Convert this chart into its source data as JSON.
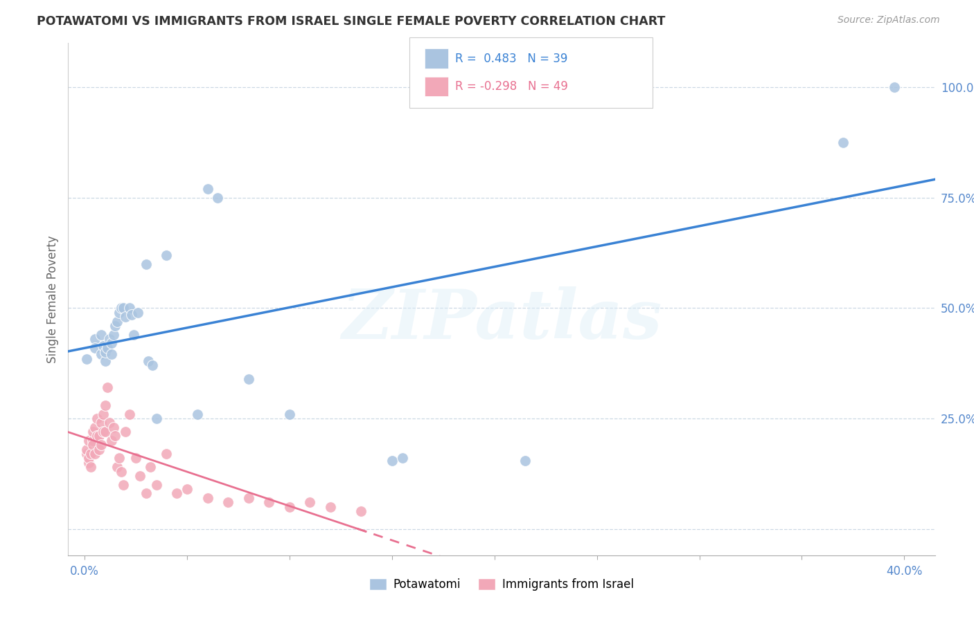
{
  "title": "POTAWATOMI VS IMMIGRANTS FROM ISRAEL SINGLE FEMALE POVERTY CORRELATION CHART",
  "source": "Source: ZipAtlas.com",
  "ylabel": "Single Female Poverty",
  "legend1_r_text": "R =  0.483",
  "legend1_n_text": "N = 39",
  "legend2_r_text": "R = -0.298",
  "legend2_n_text": "N = 49",
  "watermark": "ZIPatlas",
  "blue_dot_color": "#aac4e0",
  "pink_dot_color": "#f2a8b8",
  "blue_line_color": "#3a82d4",
  "pink_line_color": "#e87090",
  "grid_color": "#ccd8e4",
  "bg_color": "#ffffff",
  "tick_color": "#5588cc",
  "title_color": "#333333",
  "ylabel_color": "#666666",
  "source_color": "#999999",
  "potawatomi_x": [
    0.1,
    0.5,
    0.5,
    0.8,
    0.8,
    0.9,
    1.0,
    1.0,
    1.1,
    1.2,
    1.3,
    1.3,
    1.4,
    1.5,
    1.6,
    1.7,
    1.8,
    1.9,
    2.0,
    2.2,
    2.3,
    2.4,
    2.6,
    3.0,
    3.1,
    3.3,
    3.5,
    4.0,
    5.5,
    6.0,
    6.5,
    8.0,
    10.0,
    15.0,
    15.5,
    19.5,
    21.5,
    37.0,
    39.5
  ],
  "potawatomi_y": [
    38.5,
    43.0,
    41.0,
    44.0,
    39.5,
    41.5,
    38.0,
    40.0,
    41.0,
    43.0,
    42.0,
    39.5,
    44.0,
    46.0,
    47.0,
    49.0,
    50.0,
    50.0,
    48.0,
    50.0,
    48.5,
    44.0,
    49.0,
    60.0,
    38.0,
    37.0,
    25.0,
    62.0,
    26.0,
    77.0,
    75.0,
    34.0,
    26.0,
    15.5,
    16.0,
    100.0,
    15.5,
    87.5,
    100.0
  ],
  "israel_x": [
    0.1,
    0.1,
    0.2,
    0.2,
    0.2,
    0.3,
    0.3,
    0.4,
    0.4,
    0.4,
    0.5,
    0.5,
    0.6,
    0.6,
    0.7,
    0.7,
    0.8,
    0.8,
    0.9,
    0.9,
    1.0,
    1.0,
    1.1,
    1.2,
    1.3,
    1.4,
    1.5,
    1.6,
    1.7,
    1.8,
    1.9,
    2.0,
    2.2,
    2.5,
    2.7,
    3.0,
    3.2,
    3.5,
    4.0,
    4.5,
    5.0,
    6.0,
    7.0,
    8.0,
    9.0,
    10.0,
    11.0,
    12.0,
    13.5
  ],
  "israel_y": [
    17.0,
    18.0,
    15.0,
    16.0,
    20.0,
    14.0,
    17.0,
    20.0,
    19.0,
    22.0,
    17.0,
    23.0,
    21.0,
    25.0,
    18.0,
    21.0,
    19.0,
    24.0,
    22.0,
    26.0,
    28.0,
    22.0,
    32.0,
    24.0,
    20.0,
    23.0,
    21.0,
    14.0,
    16.0,
    13.0,
    10.0,
    22.0,
    26.0,
    16.0,
    12.0,
    8.0,
    14.0,
    10.0,
    17.0,
    8.0,
    9.0,
    7.0,
    6.0,
    7.0,
    6.0,
    5.0,
    6.0,
    5.0,
    4.0
  ],
  "x_ticks": [
    0.0,
    5.0,
    10.0,
    15.0,
    20.0,
    25.0,
    30.0,
    35.0,
    40.0
  ],
  "x_tick_labels": [
    "0.0%",
    "",
    "",
    "",
    "",
    "",
    "",
    "",
    "40.0%"
  ],
  "y_ticks": [
    0.0,
    25.0,
    50.0,
    75.0,
    100.0
  ],
  "y_tick_labels": [
    "",
    "25.0%",
    "50.0%",
    "75.0%",
    "100.0%"
  ],
  "xlim": [
    -0.8,
    41.5
  ],
  "ylim": [
    -6.0,
    110.0
  ],
  "blue_line_xlim": [
    -0.8,
    41.5
  ],
  "pink_line_xlim": [
    -0.8,
    41.5
  ]
}
